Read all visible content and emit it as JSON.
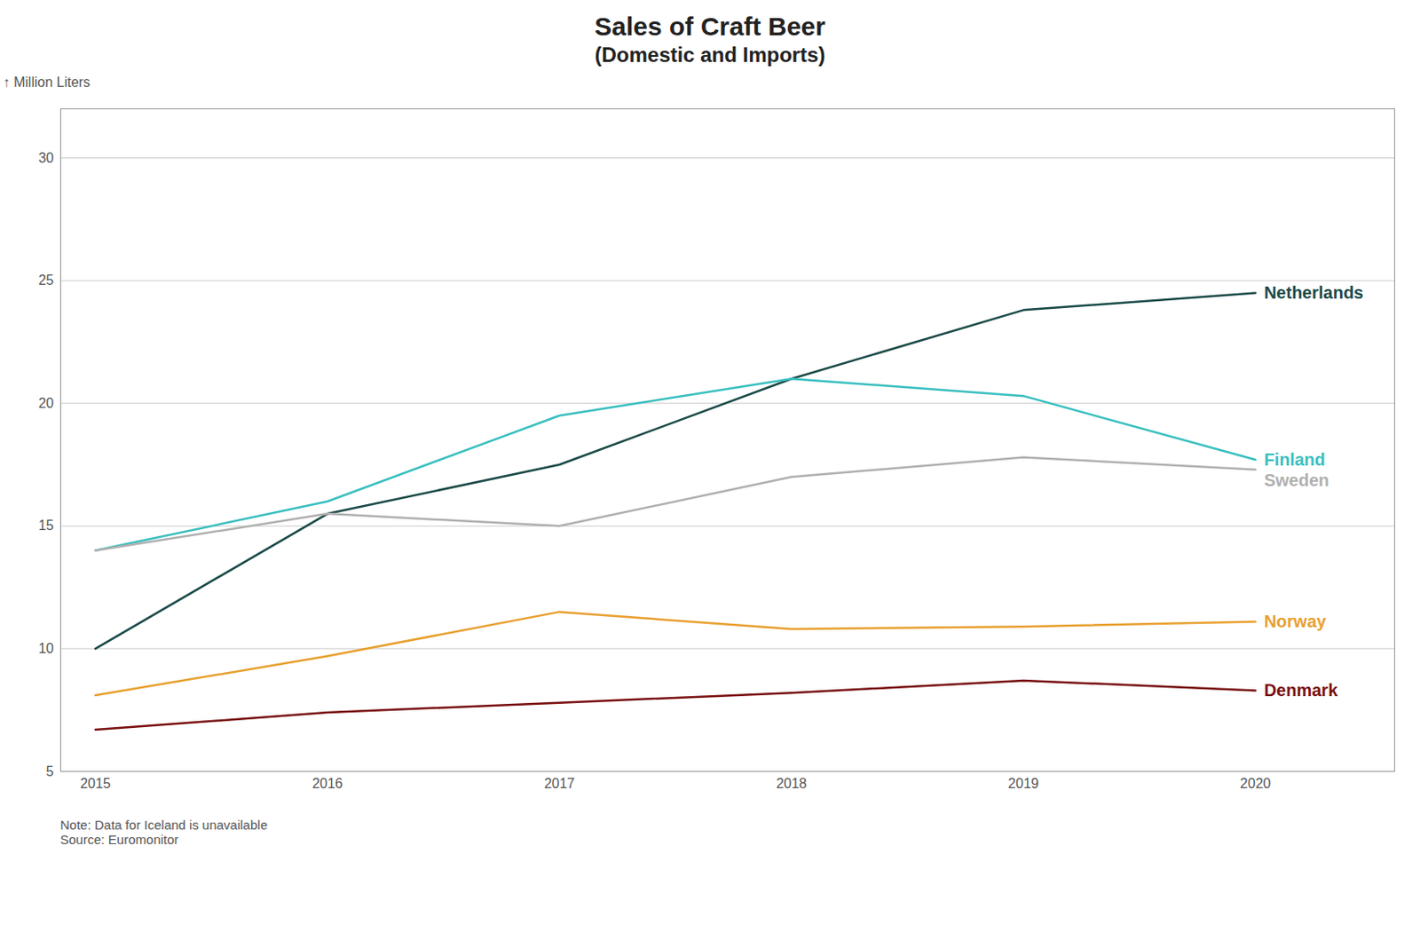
{
  "chart_data": {
    "type": "line",
    "title": "Sales of Craft Beer",
    "subtitle": "(Domestic and Imports)",
    "y_label": "Million Liters",
    "note": "Note: Data for Iceland is unavailable\nSource: Euromonitor",
    "x": [
      2015,
      2016,
      2017,
      2018,
      2019,
      2020
    ],
    "series": [
      {
        "name": "Netherlands",
        "color": "#1a4a47",
        "values": [
          10.0,
          15.5,
          17.5,
          21.0,
          23.8,
          24.5
        ]
      },
      {
        "name": "Finland",
        "color": "#3abfbf",
        "values": [
          14.0,
          16.0,
          19.5,
          21.0,
          20.3,
          17.7
        ]
      },
      {
        "name": "Sweden",
        "color": "#b0b0b0",
        "values": [
          14.0,
          15.5,
          15.0,
          17.0,
          17.8,
          17.3
        ]
      },
      {
        "name": "Norway",
        "color": "#e8a030",
        "values": [
          8.1,
          9.7,
          11.5,
          10.8,
          10.9,
          11.1
        ]
      },
      {
        "name": "Denmark",
        "color": "#7a1010",
        "values": [
          6.7,
          7.4,
          7.8,
          8.2,
          8.7,
          8.3
        ]
      }
    ],
    "xlim": [
      2014.85,
      2020.6
    ],
    "xticks": [
      2015,
      2016,
      2017,
      2018,
      2019,
      2020
    ],
    "ylim": [
      5,
      32
    ],
    "yticks": [
      5,
      10,
      15,
      20,
      25,
      30
    ],
    "grid": true
  }
}
